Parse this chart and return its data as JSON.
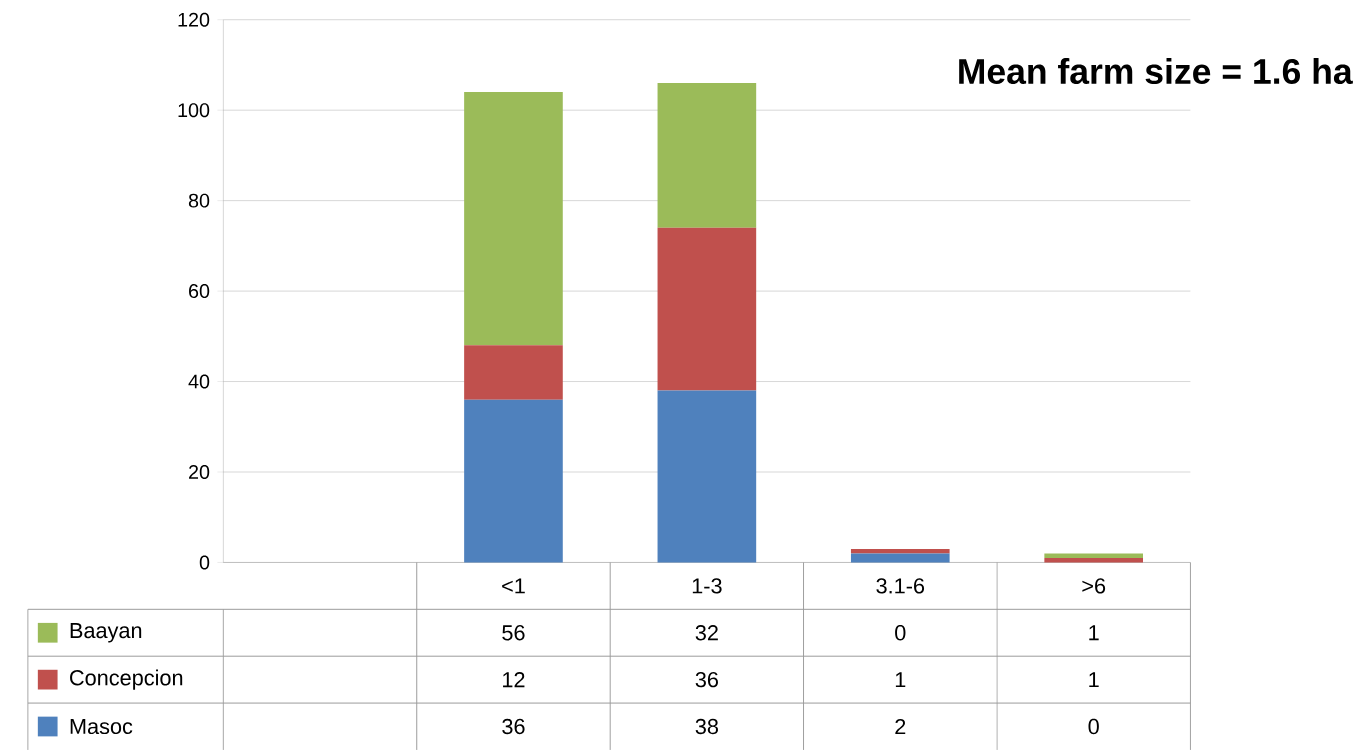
{
  "chart_data": {
    "type": "bar",
    "stacked": true,
    "categories": [
      null,
      "<1",
      "1-3",
      "3.1-6",
      ">6"
    ],
    "series": [
      {
        "name": "Masoc",
        "color": "#4f81bd",
        "values": [
          null,
          36,
          38,
          2,
          0
        ]
      },
      {
        "name": "Concepcion",
        "color": "#c0504d",
        "values": [
          null,
          12,
          36,
          1,
          1
        ]
      },
      {
        "name": "Baayan",
        "color": "#9bbb59",
        "values": [
          null,
          56,
          32,
          0,
          1
        ]
      }
    ],
    "ylim": [
      0,
      120
    ],
    "yticks": [
      0,
      20,
      40,
      60,
      80,
      100,
      120
    ],
    "grid": "y",
    "legend": "bottom left",
    "data_labels": true,
    "annotations": [
      "Mean farm size = 1.6 ha"
    ]
  }
}
